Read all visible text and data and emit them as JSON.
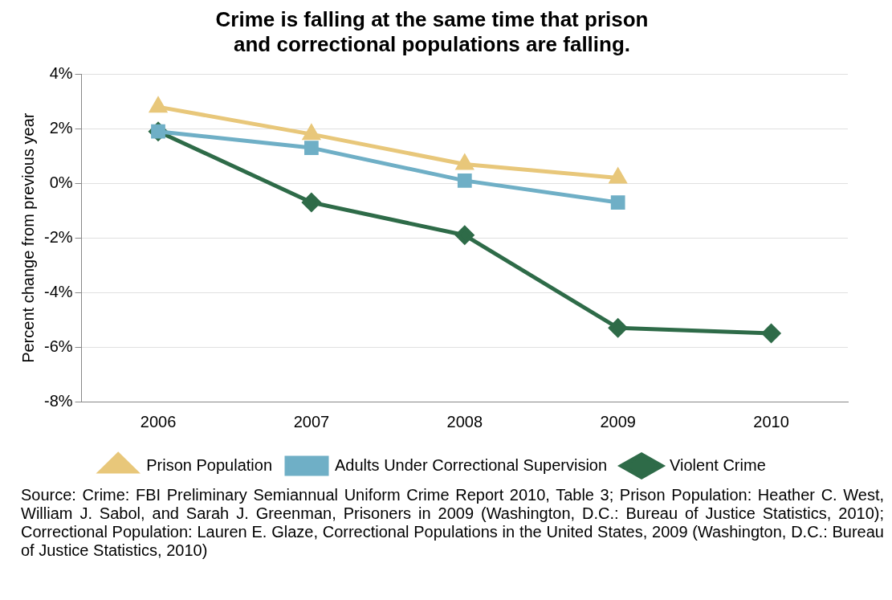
{
  "chart_data": {
    "type": "line",
    "title": "Crime is falling at the same time that prison and correctional populations are falling.",
    "ylabel": "Percent change from previous year",
    "categories": [
      "2006",
      "2007",
      "2008",
      "2009",
      "2010"
    ],
    "series": [
      {
        "name": "Violent Crime",
        "color": "#2e6b48",
        "marker": "diamond",
        "values": [
          1.9,
          -0.7,
          -1.9,
          -5.3,
          -5.5
        ]
      },
      {
        "name": "Adults Under Correctional Supervision",
        "color": "#6fafc6",
        "marker": "square",
        "values": [
          1.9,
          1.3,
          0.1,
          -0.7,
          null
        ]
      },
      {
        "name": "Prison Population",
        "color": "#e8c77a",
        "marker": "triangle",
        "values": [
          2.8,
          1.8,
          0.7,
          0.2,
          null
        ]
      }
    ],
    "ylim": [
      -8,
      4
    ],
    "yticks": [
      {
        "value": -8,
        "label": "-8%"
      },
      {
        "value": -6,
        "label": "-6%"
      },
      {
        "value": -4,
        "label": "-4%"
      },
      {
        "value": -2,
        "label": "-2%"
      },
      {
        "value": 0,
        "label": "0%"
      },
      {
        "value": 2,
        "label": "2%"
      },
      {
        "value": 4,
        "label": "4%"
      }
    ],
    "grid": "y",
    "legend": "bottom",
    "line_style": "solid",
    "annotations": [
      "Source: Crime: FBI Preliminary Semiannual Uniform Crime Report 2010, Table 3; Prison Population: Heather C. West, William J. Sabol, and Sarah J. Greenman, Prisoners in 2009 (Washington, D.C.: Bureau of Justice Statistics, 2010); Correctional Population: Lauren E. Glaze, Correctional Populations in the United States, 2009 (Washington, D.C.: Bureau of Justice Statistics, 2010)"
    ]
  }
}
